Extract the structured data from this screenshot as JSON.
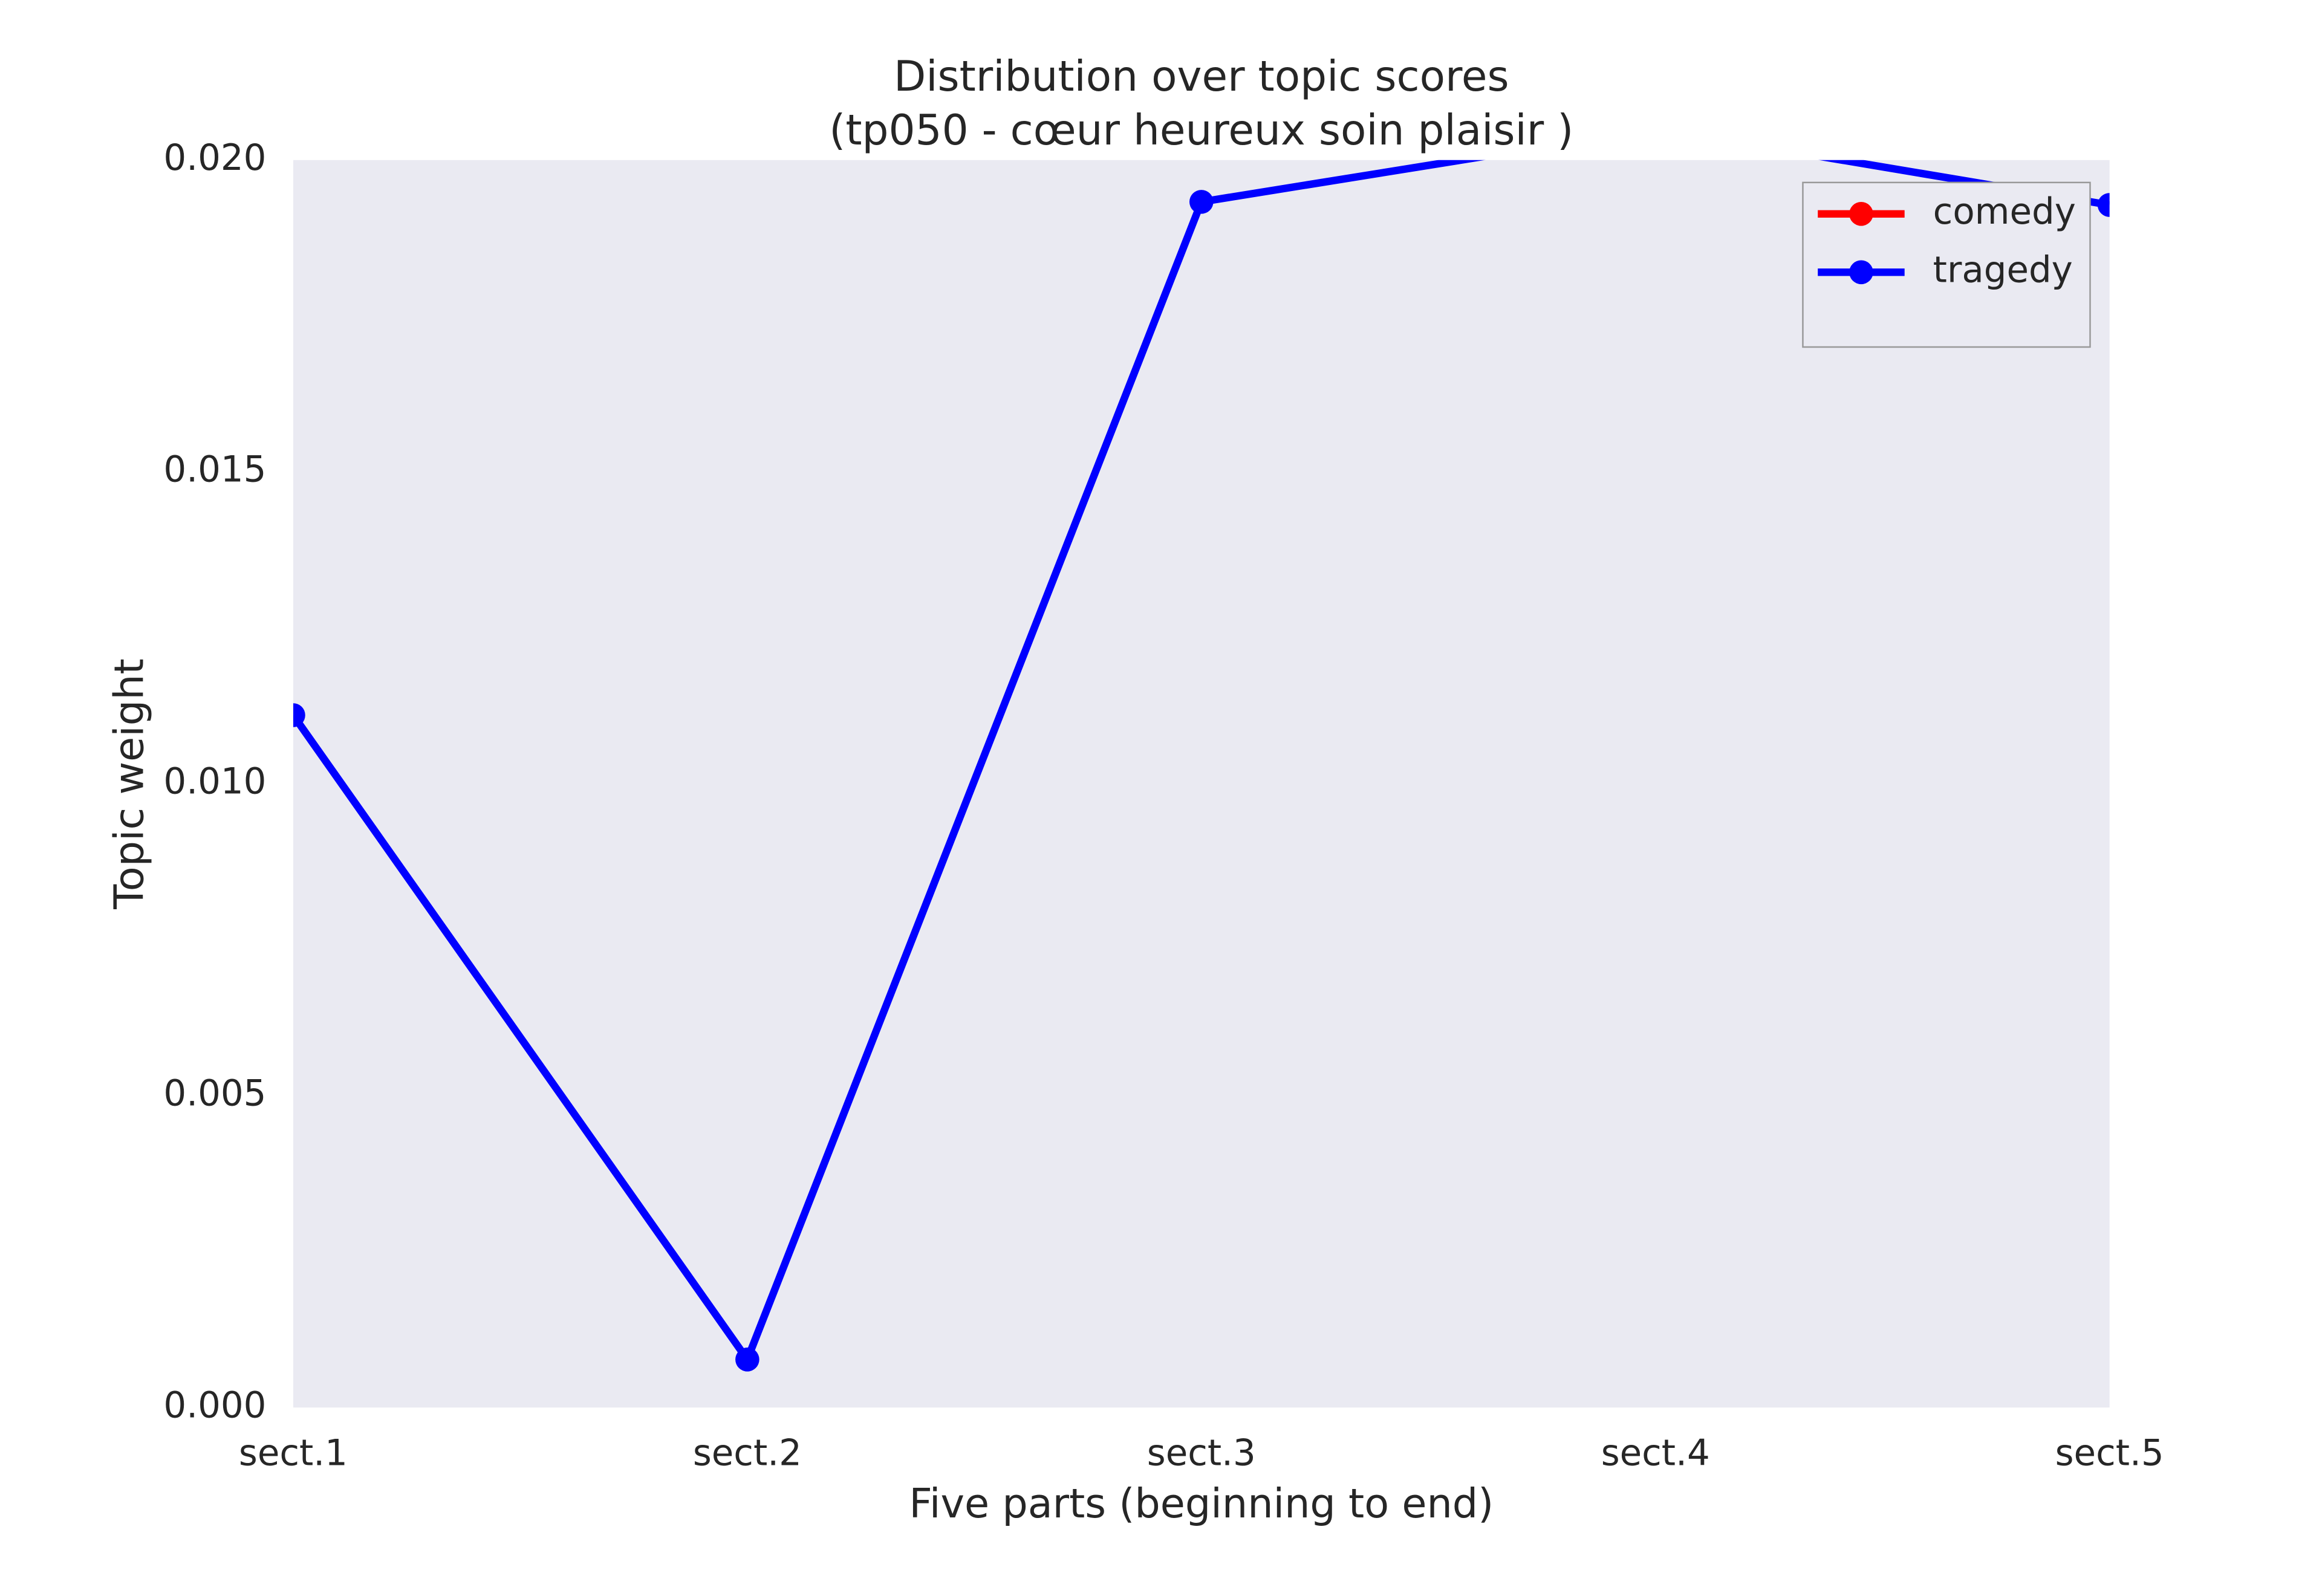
{
  "chart_data": {
    "type": "line",
    "title": "Distribution over topic scores",
    "subtitle": "(tp050 - cœur heureux soin plaisir )",
    "x_label": "Five parts (beginning to end)",
    "y_label": "Topic weight",
    "categories": [
      "sect.1",
      "sect.2",
      "sect.3",
      "sect.4",
      "sect.5"
    ],
    "series": [
      {
        "name": "comedy",
        "color": "#ff0000",
        "values": [
          null,
          null,
          null,
          null,
          null
        ]
      },
      {
        "name": "tragedy",
        "color": "#0000ff",
        "values": [
          0.0111,
          0.00077,
          0.01933,
          0.0205,
          0.01928
        ]
      }
    ],
    "ylim": [
      0,
      0.02
    ],
    "yticks": [
      {
        "value": 0,
        "label": "0.000"
      },
      {
        "value": 0.005,
        "label": "0.005"
      },
      {
        "value": 0.01,
        "label": "0.010"
      },
      {
        "value": 0.015,
        "label": "0.015"
      },
      {
        "value": 0.02,
        "label": "0.020"
      }
    ],
    "grid": false,
    "legend": "upper right"
  }
}
